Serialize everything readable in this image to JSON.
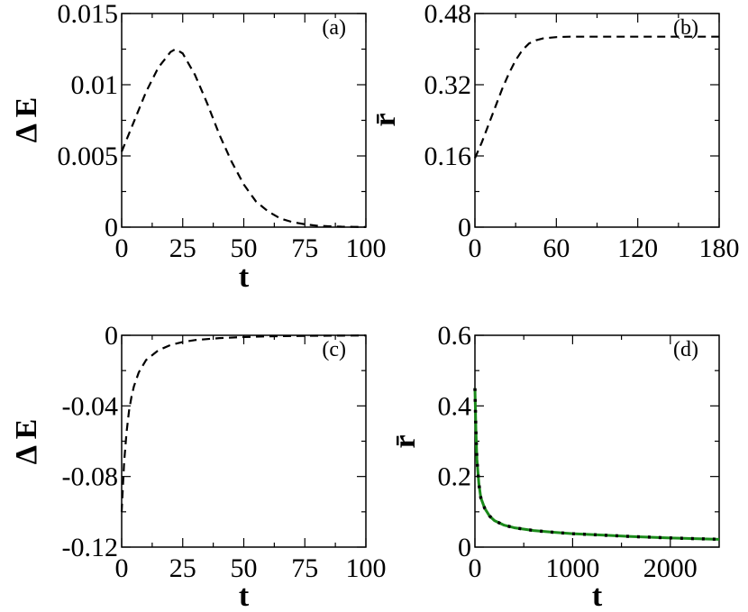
{
  "chart_data": [
    {
      "id": "a",
      "type": "line",
      "panel_label": "(a)",
      "xlabel": "t",
      "ylabel": "Δ E",
      "xlim": [
        0,
        100
      ],
      "ylim": [
        0,
        0.015
      ],
      "xticks": [
        0,
        25,
        50,
        75,
        100
      ],
      "xtick_labels": [
        "0",
        "25",
        "50",
        "75",
        "100"
      ],
      "yticks": [
        0,
        0.005,
        0.01,
        0.015
      ],
      "ytick_labels": [
        "0",
        "0.005",
        "0.01",
        "0.015"
      ],
      "series": [
        {
          "style": "dashed",
          "color": "#000000",
          "x": [
            0,
            5,
            10,
            15,
            20,
            22,
            25,
            30,
            35,
            40,
            45,
            50,
            55,
            60,
            65,
            70,
            75,
            80,
            85,
            90,
            95,
            100
          ],
          "y": [
            0.0053,
            0.0074,
            0.0095,
            0.0112,
            0.0123,
            0.0125,
            0.0122,
            0.0107,
            0.0087,
            0.0065,
            0.0046,
            0.003,
            0.0018,
            0.0011,
            0.0006,
            0.00035,
            0.0002,
            0.0001,
            6e-05,
            3e-05,
            2e-05,
            1e-05
          ]
        }
      ]
    },
    {
      "id": "b",
      "type": "line",
      "panel_label": "(b)",
      "xlabel": "",
      "ylabel": "r̄",
      "xlim": [
        0,
        180
      ],
      "ylim": [
        0,
        0.48
      ],
      "xticks": [
        0,
        60,
        120,
        180
      ],
      "xtick_labels": [
        "0",
        "60",
        "120",
        "180"
      ],
      "yticks": [
        0,
        0.16,
        0.32,
        0.48
      ],
      "ytick_labels": [
        "0",
        "0.16",
        "0.32",
        "0.48"
      ],
      "series": [
        {
          "style": "dashed",
          "color": "#000000",
          "x": [
            0,
            5,
            10,
            15,
            20,
            25,
            30,
            35,
            40,
            45,
            50,
            60,
            70,
            80,
            100,
            120,
            150,
            180
          ],
          "y": [
            0.155,
            0.19,
            0.23,
            0.27,
            0.31,
            0.345,
            0.375,
            0.398,
            0.413,
            0.42,
            0.424,
            0.427,
            0.428,
            0.428,
            0.428,
            0.428,
            0.428,
            0.428
          ]
        }
      ]
    },
    {
      "id": "c",
      "type": "line",
      "panel_label": "(c)",
      "xlabel": "t",
      "ylabel": "Δ E",
      "xlim": [
        0,
        100
      ],
      "ylim": [
        -0.12,
        0
      ],
      "xticks": [
        0,
        25,
        50,
        75,
        100
      ],
      "xtick_labels": [
        "0",
        "25",
        "50",
        "75",
        "100"
      ],
      "yticks": [
        -0.12,
        -0.08,
        -0.04,
        0
      ],
      "ytick_labels": [
        "-0.12",
        "-0.08",
        "-0.04",
        "0"
      ],
      "series": [
        {
          "style": "dashed",
          "color": "#000000",
          "x": [
            0,
            1,
            2,
            3,
            4,
            5,
            7,
            10,
            15,
            20,
            25,
            30,
            40,
            50,
            60,
            75,
            100
          ],
          "y": [
            -0.1,
            -0.072,
            -0.055,
            -0.043,
            -0.035,
            -0.029,
            -0.021,
            -0.014,
            -0.0085,
            -0.0055,
            -0.0038,
            -0.0027,
            -0.0016,
            -0.001,
            -0.0006,
            -0.0003,
            -0.0001
          ]
        }
      ]
    },
    {
      "id": "d",
      "type": "line",
      "panel_label": "(d)",
      "xlabel": "t",
      "ylabel": "r̄",
      "xlim": [
        0,
        2500
      ],
      "ylim": [
        0,
        0.6
      ],
      "xticks": [
        0,
        1000,
        2000
      ],
      "xtick_labels": [
        "0",
        "1000",
        "2000"
      ],
      "yticks": [
        0,
        0.2,
        0.4,
        0.6
      ],
      "ytick_labels": [
        "0",
        "0.2",
        "0.4",
        "0.6"
      ],
      "series": [
        {
          "style": "solid",
          "color": "#1a8a1a",
          "x": [
            0,
            10,
            20,
            40,
            60,
            100,
            150,
            200,
            300,
            400,
            600,
            800,
            1000,
            1300,
            1600,
            2000,
            2500
          ],
          "y": [
            0.45,
            0.33,
            0.25,
            0.18,
            0.14,
            0.11,
            0.088,
            0.075,
            0.062,
            0.055,
            0.047,
            0.042,
            0.038,
            0.034,
            0.03,
            0.026,
            0.022
          ]
        },
        {
          "style": "dotted",
          "color": "#000000",
          "x": [
            0,
            10,
            20,
            40,
            60,
            100,
            150,
            200,
            300,
            400,
            600,
            800,
            1000,
            1300,
            1600,
            2000,
            2500
          ],
          "y": [
            0.45,
            0.33,
            0.25,
            0.18,
            0.14,
            0.11,
            0.088,
            0.075,
            0.062,
            0.055,
            0.047,
            0.042,
            0.038,
            0.034,
            0.03,
            0.026,
            0.022
          ]
        }
      ]
    }
  ]
}
